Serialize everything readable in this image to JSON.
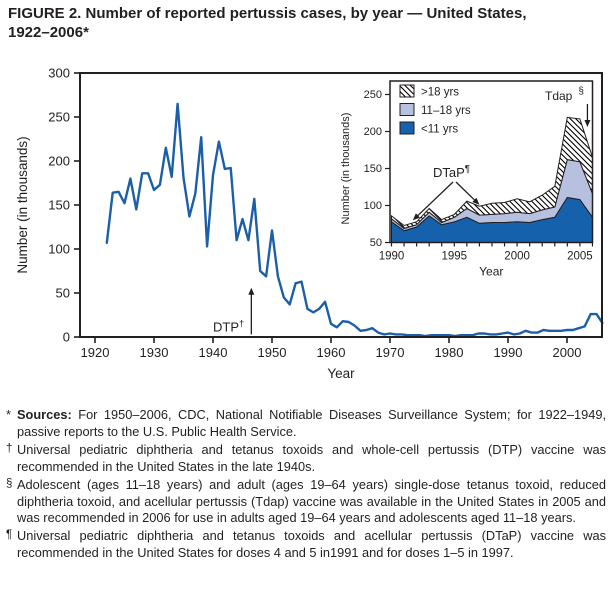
{
  "figure": {
    "title_line1": "FIGURE 2. Number of reported pertussis cases, by year — United States,",
    "title_line2": "1922–2006*"
  },
  "colors": {
    "line_blue": "#1c5fa8",
    "area_dark_blue": "#1661ab",
    "area_light_blue": "#b7c0de",
    "hatch_line": "#000000",
    "axis": "#231f20",
    "background": "#ffffff"
  },
  "chart_data": [
    {
      "id": "main",
      "type": "line",
      "xlabel": "Year",
      "ylabel": "Number (in thousands)",
      "ylim": [
        0,
        300
      ],
      "xlim": [
        1920,
        2007
      ],
      "grid": false,
      "xticks": [
        1920,
        1930,
        1940,
        1950,
        1960,
        1970,
        1980,
        1990,
        2000
      ],
      "yticks": [
        0,
        50,
        100,
        150,
        200,
        250,
        300
      ],
      "x": [
        1922,
        1923,
        1924,
        1925,
        1926,
        1927,
        1928,
        1929,
        1930,
        1931,
        1932,
        1933,
        1934,
        1935,
        1936,
        1937,
        1938,
        1939,
        1940,
        1941,
        1942,
        1943,
        1944,
        1945,
        1946,
        1947,
        1948,
        1949,
        1950,
        1951,
        1952,
        1953,
        1954,
        1955,
        1956,
        1957,
        1958,
        1959,
        1960,
        1961,
        1962,
        1963,
        1964,
        1965,
        1966,
        1967,
        1968,
        1969,
        1970,
        1971,
        1972,
        1973,
        1974,
        1975,
        1976,
        1977,
        1978,
        1979,
        1980,
        1981,
        1982,
        1983,
        1984,
        1985,
        1986,
        1987,
        1988,
        1989,
        1990,
        1991,
        1992,
        1993,
        1994,
        1995,
        1996,
        1997,
        1998,
        1999,
        2000,
        2001,
        2002,
        2003,
        2004,
        2005,
        2006
      ],
      "values": [
        107,
        164,
        165,
        152,
        180,
        145,
        186,
        186,
        167,
        173,
        215,
        182,
        265,
        181,
        137,
        163,
        227,
        103,
        184,
        222,
        191,
        192,
        110,
        134,
        110,
        157,
        75,
        69,
        121,
        69,
        45,
        37,
        61,
        63,
        32,
        28,
        32,
        40,
        15,
        11,
        18,
        17,
        13,
        7,
        8,
        10,
        5,
        3,
        4,
        3,
        3,
        2,
        2,
        2,
        1,
        2,
        2,
        2,
        2,
        1,
        2,
        2,
        2,
        4,
        4,
        3,
        3,
        4,
        5,
        3,
        4,
        7,
        5,
        5,
        8,
        7,
        7,
        7,
        8,
        8,
        10,
        12,
        26,
        26,
        16
      ],
      "annotation": {
        "text": "DTP",
        "sup": "†",
        "arrow_year": 1946.5,
        "arrow_from_value": 3,
        "arrow_to_value": 56
      }
    },
    {
      "id": "inset",
      "type": "area",
      "stacked": true,
      "xlabel": "Year",
      "ylabel": "Number (in thousands)",
      "ylim": [
        50,
        270
      ],
      "baseline": 50,
      "xticks": [
        1990,
        1995,
        2000,
        2005
      ],
      "minor_xticks_every_year": true,
      "yticks": [
        50,
        100,
        150,
        200,
        250
      ],
      "x": [
        1990,
        1991,
        1992,
        1993,
        1994,
        1995,
        1996,
        1997,
        1998,
        1999,
        2000,
        2001,
        2002,
        2003,
        2004,
        2005,
        2006
      ],
      "series": [
        {
          "name": "<11 yrs",
          "fill": "solid-dark-blue",
          "values": [
            28,
            16,
            21,
            36,
            24,
            28,
            34,
            26,
            27,
            27,
            28,
            27,
            31,
            34,
            61,
            58,
            34
          ]
        },
        {
          "name": "11–18 yrs",
          "fill": "solid-light-blue",
          "values": [
            4,
            3,
            3,
            5,
            3,
            6,
            12,
            11,
            11,
            12,
            13,
            12,
            13,
            14,
            51,
            51,
            32
          ]
        },
        {
          "name": ">18 yrs",
          "fill": "hatch",
          "values": [
            4,
            4,
            4,
            5,
            4,
            4,
            10,
            12,
            15,
            15,
            18,
            16,
            20,
            28,
            57,
            58,
            49
          ]
        }
      ],
      "legend": {
        "position": "top-left",
        "entries": [
          ">18 yrs",
          "11–18 yrs",
          "<11 yrs"
        ]
      },
      "annotations": [
        {
          "text": "DTaP",
          "sup": "¶",
          "arrows": [
            {
              "to_year": 1991.7,
              "to_value": 80
            },
            {
              "to_year": 1997,
              "to_value": 101
            }
          ]
        },
        {
          "text": "Tdap",
          "sup": "§",
          "arrows": [
            {
              "to_year": 2005.6,
              "to_value": 206
            }
          ]
        }
      ]
    }
  ],
  "footnotes": [
    {
      "marker": "*",
      "bold": "Sources:",
      "text": "For 1950–2006, CDC, National Notifiable Diseases Surveillance System; for 1922–1949, passive reports to the U.S. Public Health Service."
    },
    {
      "marker": "†",
      "bold": "",
      "text": "Universal pediatric diphtheria and tetanus toxoids and whole-cell pertussis (DTP) vaccine was recommended in the United States in the late 1940s."
    },
    {
      "marker": "§",
      "bold": "",
      "text": "Adolescent (ages 11–18 years) and adult (ages 19–64 years) single-dose tetanus toxoid, reduced diphtheria toxoid, and acellular pertussis (Tdap) vaccine was available in the United States in 2005 and was recommended in 2006 for use in adults aged 19–64 years and adolescents aged 11–18 years."
    },
    {
      "marker": "¶",
      "bold": "",
      "text": "Universal pediatric diphtheria and tetanus toxoids and acellular pertussis (DTaP) vaccine was recommended in the United States for doses 4 and 5 in1991 and for doses 1–5 in 1997."
    }
  ]
}
